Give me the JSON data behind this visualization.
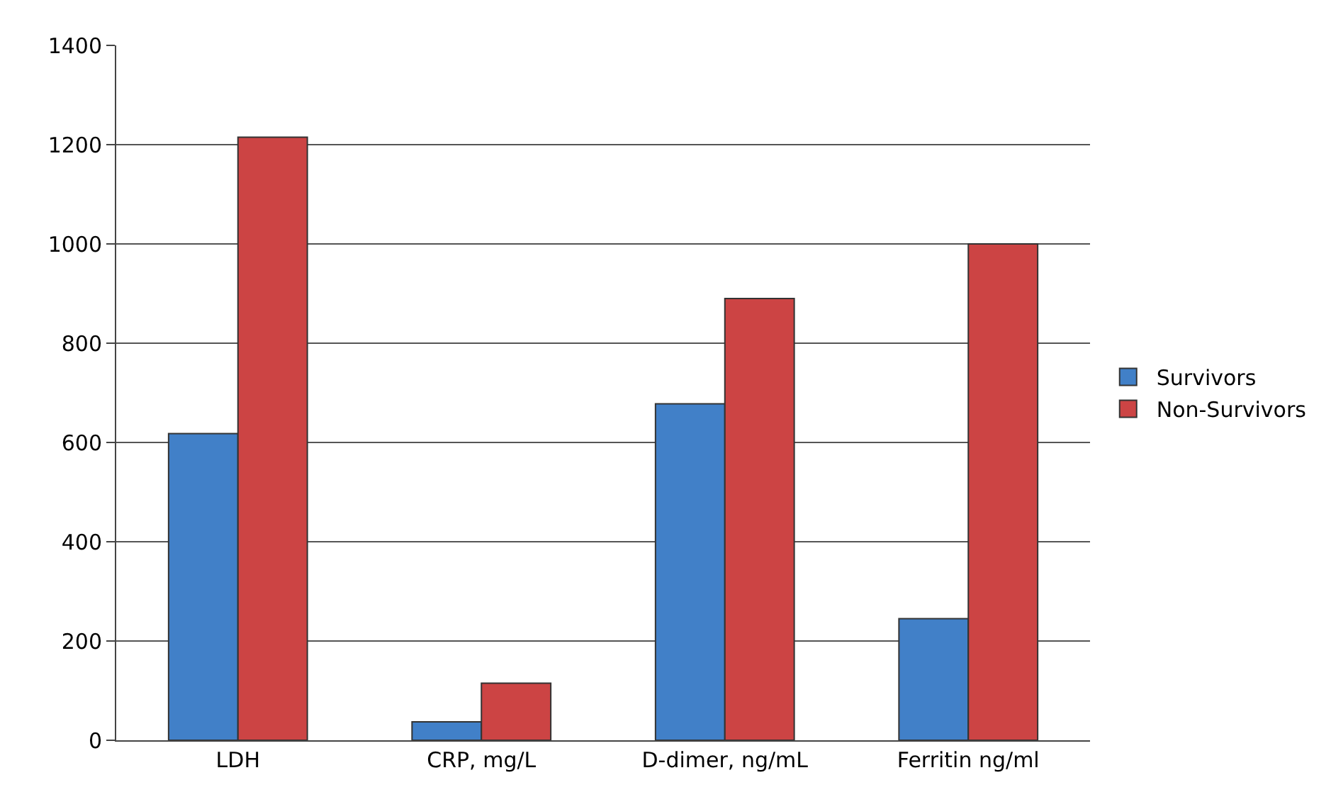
{
  "chart_data": {
    "type": "bar",
    "categories": [
      "LDH",
      "CRP, mg/L",
      "D-dimer, ng/mL",
      "Ferritin ng/ml"
    ],
    "series": [
      {
        "name": "Survivors",
        "color": "#4180c8",
        "values": [
          618,
          37,
          678,
          245
        ]
      },
      {
        "name": "Non-Survivors",
        "color": "#cc4444",
        "values": [
          1215,
          115,
          890,
          1000
        ]
      }
    ],
    "ylim": [
      0,
      1400
    ],
    "yticks": [
      0,
      200,
      400,
      600,
      800,
      1000,
      1200,
      1400
    ],
    "grid": "y",
    "legend": "right"
  }
}
